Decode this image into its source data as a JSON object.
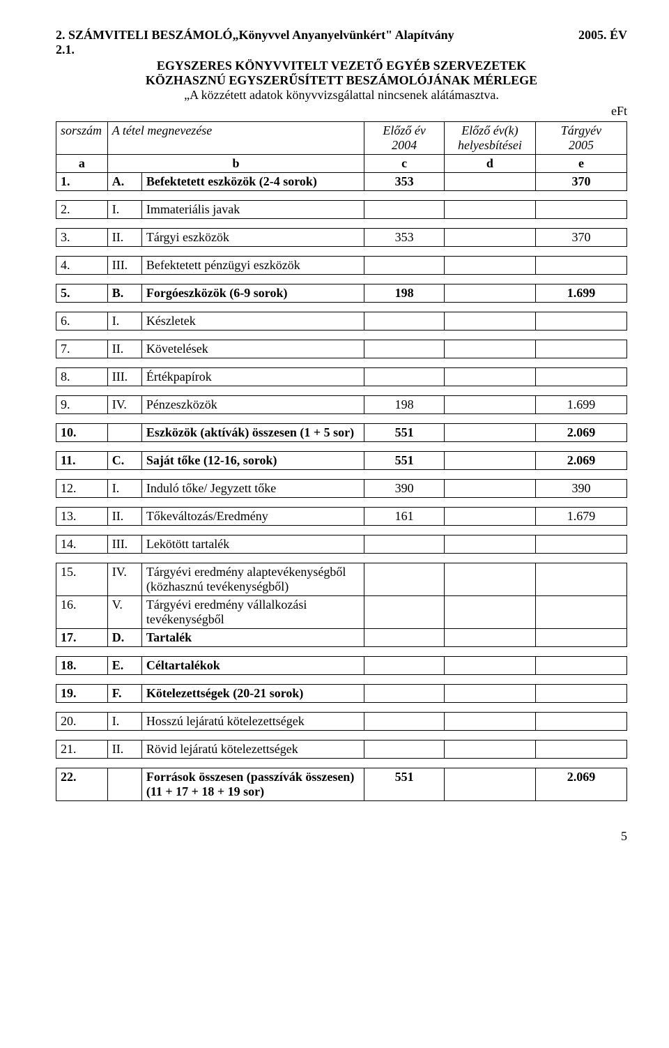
{
  "header": {
    "left_title": "2. SZÁMVITELI BESZÁMOLÓ„Könyvvel Anyanyelvünkért\" Alapítvány",
    "right_year": "2005. ÉV",
    "section_num": "2.1.",
    "subtitle_line1": "EGYSZERES KÖNYVVITELT VEZETŐ EGYÉB SZERVEZETEK",
    "subtitle_line2": "KÖZHASZNÚ EGYSZERŰSÍTETT BESZÁMOLÓJÁNAK MÉRLEGE",
    "subtitle_line3": "„A közzétett adatok könyvvizsgálattal nincsenek alátámasztva.",
    "unit": "eFt"
  },
  "thead": {
    "sorszam": "sorszám",
    "megnevezes": "A tétel megnevezése",
    "eloz_ev": "Előző év",
    "eloz_ev_year": "2004",
    "eloz_evk": "Előző év(k)",
    "eloz_evk_sub": "helyesbítései",
    "targyev": "Tárgyév",
    "targyev_year": "2005",
    "a": "a",
    "b": "b",
    "c": "c",
    "d": "d",
    "e": "e"
  },
  "rows": {
    "r1": {
      "num": "1.",
      "code": "A.",
      "name": "Befektetett eszközök (2-4 sorok)",
      "c": "353",
      "d": "",
      "e": "370",
      "bold": true
    },
    "r2": {
      "num": "2.",
      "code": "I.",
      "name": "Immateriális javak",
      "c": "",
      "d": "",
      "e": ""
    },
    "r3": {
      "num": "3.",
      "code": "II.",
      "name": "Tárgyi eszközök",
      "c": "353",
      "d": "",
      "e": "370"
    },
    "r4": {
      "num": "4.",
      "code": "III.",
      "name": "Befektetett pénzügyi eszközök",
      "c": "",
      "d": "",
      "e": ""
    },
    "r5": {
      "num": "5.",
      "code": "B.",
      "name": "Forgóeszközök (6-9 sorok)",
      "c": "198",
      "d": "",
      "e": "1.699",
      "bold": true
    },
    "r6": {
      "num": "6.",
      "code": "I.",
      "name": "Készletek",
      "c": "",
      "d": "",
      "e": ""
    },
    "r7": {
      "num": "7.",
      "code": "II.",
      "name": "Követelések",
      "c": "",
      "d": "",
      "e": ""
    },
    "r8": {
      "num": "8.",
      "code": "III.",
      "name": "Értékpapírok",
      "c": "",
      "d": "",
      "e": ""
    },
    "r9": {
      "num": "9.",
      "code": "IV.",
      "name": "Pénzeszközök",
      "c": "198",
      "d": "",
      "e": "1.699"
    },
    "r10": {
      "num": "10.",
      "code": "",
      "name": "Eszközök (aktívák) összesen (1 + 5 sor)",
      "c": "551",
      "d": "",
      "e": "2.069",
      "bold": true
    },
    "r11": {
      "num": "11.",
      "code": "C.",
      "name": "Saját tőke (12-16, sorok)",
      "c": "551",
      "d": "",
      "e": "2.069",
      "bold": true
    },
    "r12": {
      "num": "12.",
      "code": "I.",
      "name": "Induló tőke/ Jegyzett tőke",
      "c": "390",
      "d": "",
      "e": "390"
    },
    "r13": {
      "num": "13.",
      "code": "II.",
      "name": "Tőkeváltozás/Eredmény",
      "c": "161",
      "d": "",
      "e": "1.679"
    },
    "r14": {
      "num": "14.",
      "code": "III.",
      "name": "Lekötött tartalék",
      "c": "",
      "d": "",
      "e": ""
    },
    "r15": {
      "num": "15.",
      "code": "IV.",
      "name": "Tárgyévi eredmény alaptevékenységből (közhasznú tevékenységből)",
      "c": "",
      "d": "",
      "e": ""
    },
    "r16": {
      "num": "16.",
      "code": "V.",
      "name": "Tárgyévi eredmény vállalkozási tevékenységből",
      "c": "",
      "d": "",
      "e": ""
    },
    "r17": {
      "num": "17.",
      "code": "D.",
      "name": "Tartalék",
      "c": "",
      "d": "",
      "e": "",
      "bold": true
    },
    "r18": {
      "num": "18.",
      "code": "E.",
      "name": "Céltartalékok",
      "c": "",
      "d": "",
      "e": "",
      "bold": true
    },
    "r19": {
      "num": "19.",
      "code": "F.",
      "name": "Kötelezettségek (20-21 sorok)",
      "c": "",
      "d": "",
      "e": "",
      "bold": true
    },
    "r20": {
      "num": "20.",
      "code": "I.",
      "name": "Hosszú lejáratú kötelezettségek",
      "c": "",
      "d": "",
      "e": ""
    },
    "r21": {
      "num": "21.",
      "code": "II.",
      "name": "Rövid lejáratú kötelezettségek",
      "c": "",
      "d": "",
      "e": ""
    },
    "r22": {
      "num": "22.",
      "code": "",
      "name": "Források összesen (passzívák összesen) (11 + 17 + 18 + 19 sor)",
      "c": "551",
      "d": "",
      "e": "2.069",
      "bold": true
    }
  },
  "page_number": "5"
}
